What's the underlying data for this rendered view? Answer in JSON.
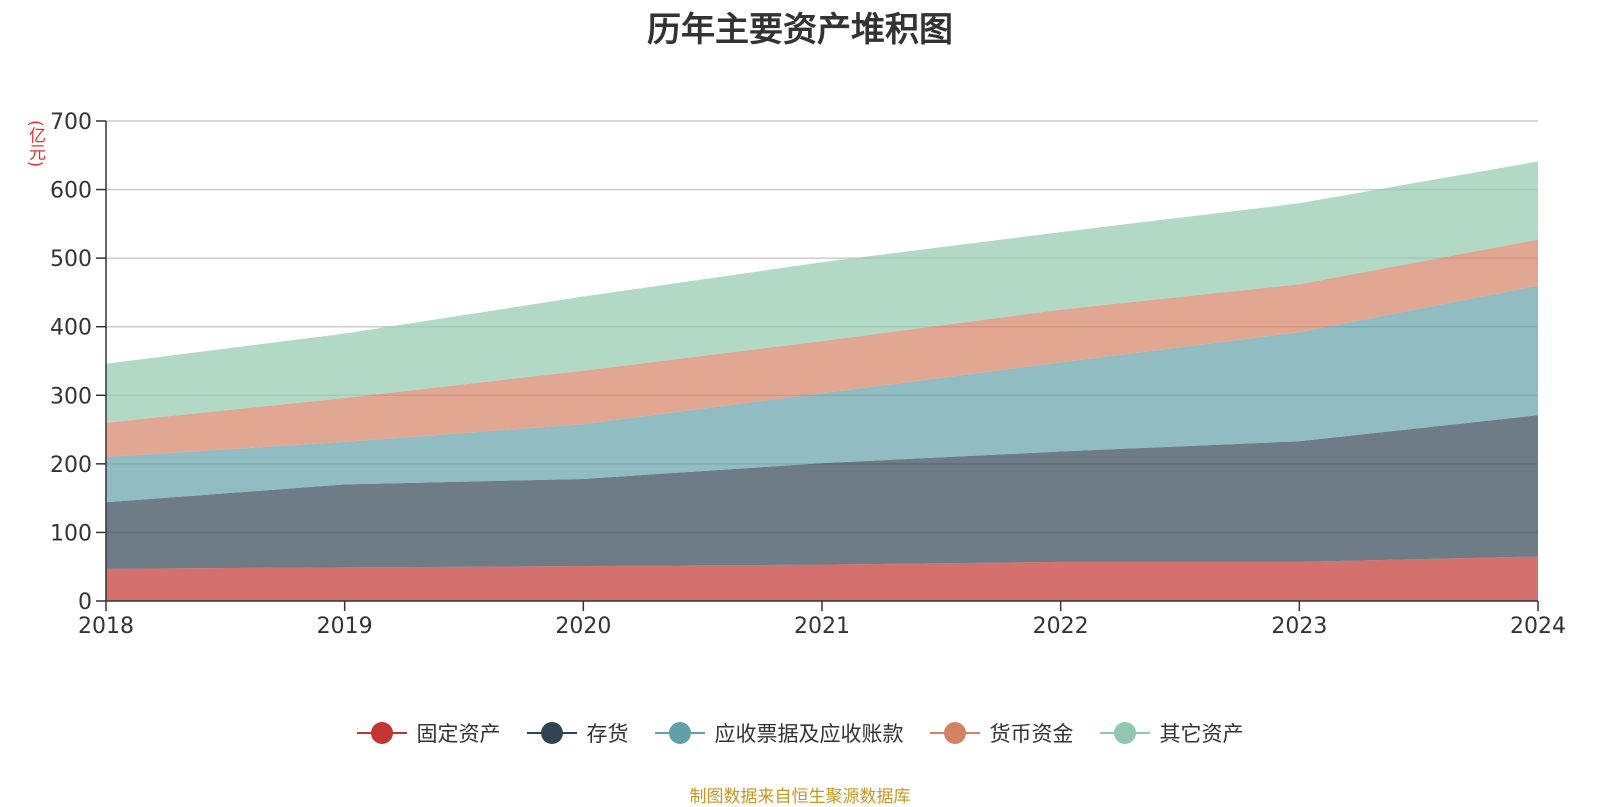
{
  "chart_data": {
    "type": "area",
    "stacked": true,
    "title": "历年主要资产堆积图",
    "unit": "(亿元)",
    "x": [
      "2018",
      "2019",
      "2020",
      "2021",
      "2022",
      "2023",
      "2024"
    ],
    "ylim": [
      0,
      700
    ],
    "yticks": [
      0,
      100,
      200,
      300,
      400,
      500,
      600,
      700
    ],
    "grid": true,
    "legend_position": "bottom",
    "series": [
      {
        "name": "固定资产",
        "color": "#c23531",
        "values": [
          47,
          49,
          51,
          53,
          57,
          57,
          65
        ]
      },
      {
        "name": "存货",
        "color": "#2f4554",
        "values": [
          97,
          121,
          127,
          148,
          161,
          176,
          206
        ]
      },
      {
        "name": "应收票据及应收账款",
        "color": "#61a0a8",
        "values": [
          66,
          62,
          80,
          102,
          130,
          159,
          189
        ]
      },
      {
        "name": "货币资金",
        "color": "#d48265",
        "values": [
          50,
          64,
          78,
          76,
          77,
          70,
          67
        ]
      },
      {
        "name": "其它资产",
        "color": "#91c7ae",
        "values": [
          86,
          94,
          108,
          115,
          113,
          118,
          114
        ]
      }
    ]
  },
  "footer": {
    "source": "制图数据来自恒生聚源数据库"
  }
}
